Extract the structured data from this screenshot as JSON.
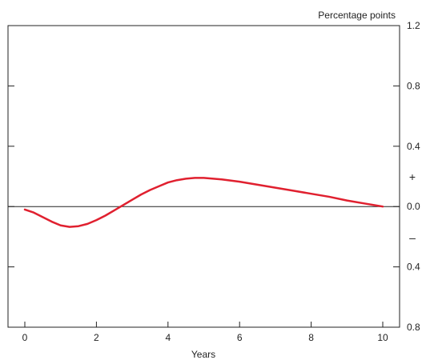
{
  "chart_data": {
    "type": "line",
    "title": "",
    "xlabel": "Years",
    "ylabel": "Percentage points",
    "xlim": [
      0,
      10
    ],
    "ylim": [
      -0.8,
      1.2
    ],
    "x_ticks": [
      0,
      2,
      4,
      6,
      8,
      10
    ],
    "x_tick_labels": [
      "0",
      "2",
      "4",
      "6",
      "8",
      "10"
    ],
    "y_ticks": [
      1.2,
      0.8,
      0.4,
      0.0,
      -0.4,
      -0.8
    ],
    "y_tick_labels": [
      "1.2",
      "0.8",
      "0.4",
      "0.0",
      "0.4",
      "0.8"
    ],
    "sign_labels": {
      "positive": "+",
      "negative": "–"
    },
    "grid": false,
    "zero_line": true,
    "colors": {
      "series": "#e0202f",
      "axis": "#222222"
    },
    "series": [
      {
        "x": [
          0,
          0.25,
          0.5,
          0.75,
          1.0,
          1.25,
          1.5,
          1.75,
          2.0,
          2.25,
          2.5,
          2.75,
          3.0,
          3.25,
          3.5,
          3.75,
          4.0,
          4.25,
          4.5,
          4.75,
          5.0,
          5.5,
          6.0,
          6.5,
          7.0,
          7.5,
          8.0,
          8.5,
          9.0,
          9.5,
          10.0
        ],
        "y": [
          -0.02,
          -0.04,
          -0.07,
          -0.1,
          -0.125,
          -0.135,
          -0.13,
          -0.115,
          -0.09,
          -0.06,
          -0.025,
          0.01,
          0.045,
          0.08,
          0.11,
          0.135,
          0.16,
          0.175,
          0.185,
          0.19,
          0.19,
          0.18,
          0.165,
          0.145,
          0.125,
          0.105,
          0.085,
          0.065,
          0.04,
          0.02,
          0.0
        ]
      }
    ]
  }
}
